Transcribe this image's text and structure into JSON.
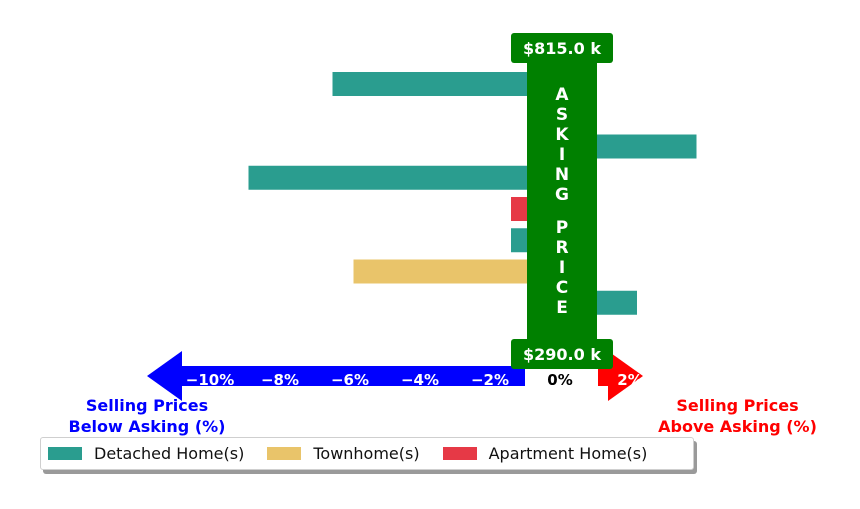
{
  "chart_data": {
    "type": "bar",
    "orientation": "horizontal",
    "x_unit": "%",
    "xlim": [
      -12,
      3
    ],
    "x_ticks": [
      -10,
      -8,
      -6,
      -4,
      -2,
      0,
      2
    ],
    "x_tick_labels": [
      "−10%",
      "−8%",
      "−6%",
      "−4%",
      "−2%",
      "0%",
      "2%"
    ],
    "bars": [
      {
        "series": "Detached Home(s)",
        "value": -6.5
      },
      {
        "series": "Apartment Home(s)",
        "value": -0.2
      },
      {
        "series": "Detached Home(s)",
        "value": 3.9
      },
      {
        "series": "Detached Home(s)",
        "value": -8.9
      },
      {
        "series": "Apartment Home(s)",
        "value": -1.4
      },
      {
        "series": "Detached Home(s)",
        "value": -1.4
      },
      {
        "series": "Townhome(s)",
        "value": -5.9
      },
      {
        "series": "Detached Home(s)",
        "value": 2.2
      },
      {
        "series": "Detached Home(s)",
        "value": -0.3
      }
    ],
    "series": [
      {
        "name": "Detached Home(s)",
        "color": "#2a9d8f"
      },
      {
        "name": "Townhome(s)",
        "color": "#e9c46a"
      },
      {
        "name": "Apartment Home(s)",
        "color": "#e63946"
      }
    ],
    "price_band": {
      "text": "ASKING PRICE",
      "top_label": "$815.0 k",
      "bottom_label": "$290.0 k",
      "color": "#008000"
    },
    "below_label": "Selling Prices\nBelow Asking (%)",
    "above_label": "Selling Prices\nAbove Asking (%)",
    "below_color": "#0000ff",
    "above_color": "#ff0000",
    "legend": [
      "Detached Home(s)",
      "Townhome(s)",
      "Apartment Home(s)"
    ]
  }
}
